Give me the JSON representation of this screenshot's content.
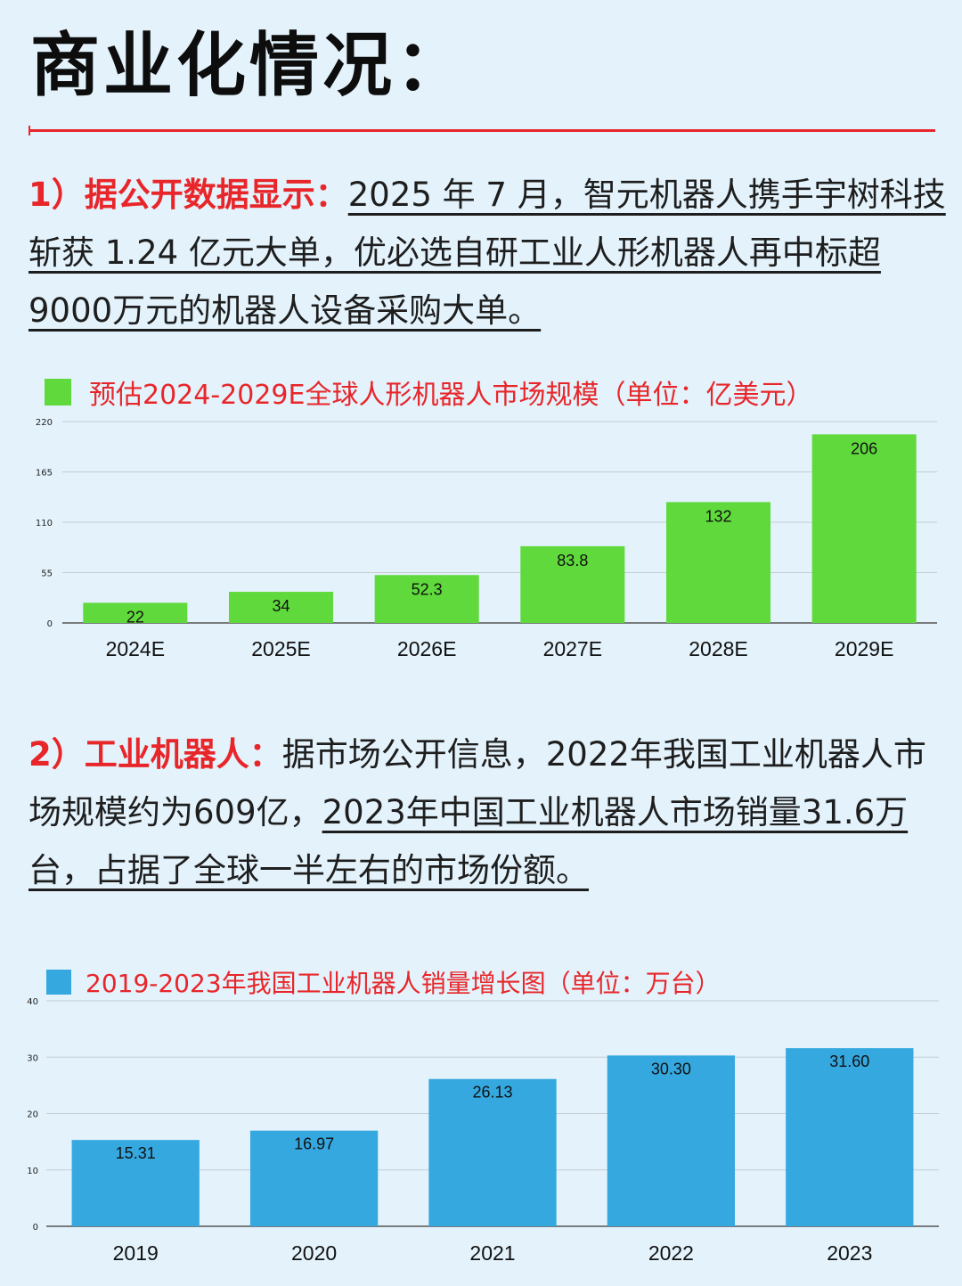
{
  "title": "商业化情况：",
  "para1": {
    "lead": "1）据公开数据显示：",
    "text": "2025 年 7 月，智元机器人携手宇树科技斩获 1.24 亿元大单，优必选自研工业人形机器人再中标超9000万元的机器人设备采购大单。"
  },
  "para2": {
    "lead": "2）工业机器人：",
    "text_plain": "据市场公开信息，2022年我国工业机器人市场规模约为609亿，",
    "text_underlined": "2023年中国工业机器人市场销量31.6万台，占据了全球一半左右的市场份额。"
  },
  "colors": {
    "accent": "#e8262a",
    "bar_green": "#5fd93c",
    "bar_blue": "#36a8e0",
    "grid": "#c4cdd3"
  },
  "chart_data": [
    {
      "type": "bar",
      "title": "预估2024-2029E全球人形机器人市场规模（单位：亿美元）",
      "categories": [
        "2024E",
        "2025E",
        "2026E",
        "2027E",
        "2028E",
        "2029E"
      ],
      "values": [
        22,
        34,
        52.3,
        83.8,
        132,
        206
      ],
      "value_labels": [
        "22",
        "34",
        "52.3",
        "83.8",
        "132",
        "206"
      ],
      "yticks": [
        "0",
        "55",
        "110",
        "165",
        "220"
      ],
      "ylim": [
        0,
        220
      ],
      "grid": true,
      "legend": "top-left"
    },
    {
      "type": "bar",
      "title": "2019-2023年我国工业机器人销量增长图（单位：万台）",
      "categories": [
        "2019",
        "2020",
        "2021",
        "2022",
        "2023"
      ],
      "values": [
        15.31,
        16.97,
        26.13,
        30.3,
        31.6
      ],
      "value_labels": [
        "15.31",
        "16.97",
        "26.13",
        "30.30",
        "31.60"
      ],
      "yticks": [
        "0",
        "10",
        "20",
        "30",
        "40"
      ],
      "ylim": [
        0,
        40
      ],
      "grid": true,
      "legend": "top-left"
    }
  ]
}
